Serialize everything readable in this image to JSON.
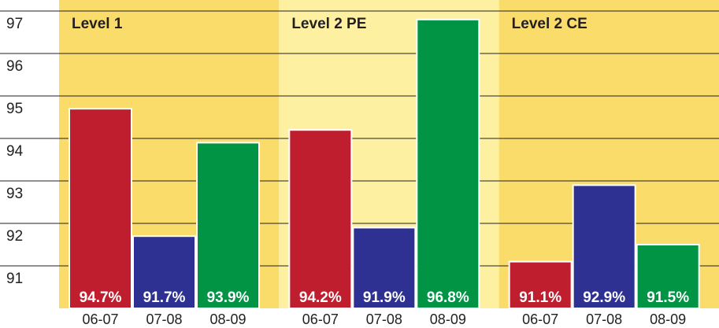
{
  "chart_data": {
    "type": "bar",
    "categories": [
      "Level 1",
      "Level 2 PE",
      "Level 2 CE"
    ],
    "series": [
      {
        "name": "06-07",
        "color": "#bf1e2e",
        "values": [
          94.7,
          94.2,
          91.1
        ],
        "value_labels": [
          "94.7%",
          "94.2%",
          "91.1%"
        ]
      },
      {
        "name": "07-08",
        "color": "#2e3192",
        "values": [
          91.7,
          91.9,
          92.9
        ],
        "value_labels": [
          "91.7%",
          "91.9%",
          "92.9%"
        ]
      },
      {
        "name": "08-09",
        "color": "#009444",
        "values": [
          93.9,
          96.8,
          91.5
        ],
        "value_labels": [
          "93.9%",
          "96.8%",
          "91.5%"
        ]
      }
    ],
    "ylim": [
      90,
      97
    ],
    "yticks": [
      91,
      92,
      93,
      94,
      95,
      96,
      97
    ],
    "grid": true
  }
}
